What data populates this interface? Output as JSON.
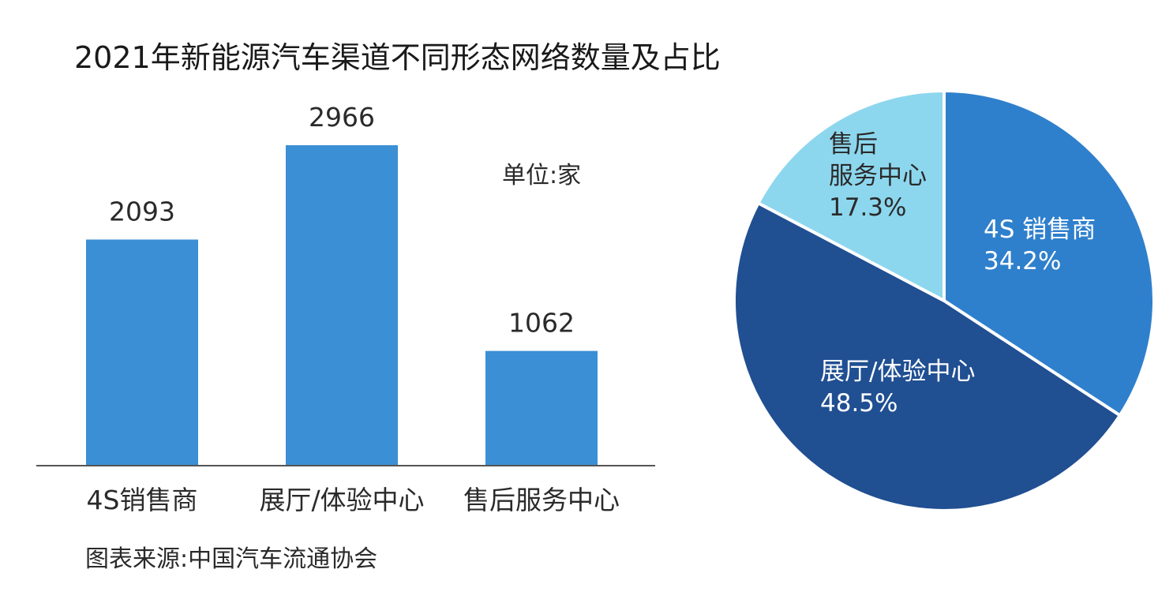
{
  "title": "2021年新能源汽车渠道不同形态网络数量及占比",
  "unit_label": "单位:家",
  "source": "图表来源:中国汽车流通协会",
  "colors": {
    "bar": "#3b8fd4",
    "axis": "#555555",
    "pie": [
      "#2f80cc",
      "#204f92",
      "#8dd7ee"
    ],
    "pie_text": [
      "#ffffff",
      "#ffffff",
      "#2a2a2a"
    ]
  },
  "chart_data": [
    {
      "type": "bar",
      "title": "2021年新能源汽车渠道不同形态网络数量及占比",
      "categories": [
        "4S销售商",
        "展厅/体验中心",
        "售后服务中心"
      ],
      "values": [
        2093,
        2966,
        1062
      ],
      "value_labels": [
        "2093",
        "2966",
        "1062"
      ],
      "ylabel": "单位:家",
      "ylim": [
        0,
        3400
      ],
      "grid": false
    },
    {
      "type": "pie",
      "slices": [
        {
          "name": "4S 销售商",
          "lines": [
            "4S 销售商"
          ],
          "value": 34.2,
          "label": "34.2%"
        },
        {
          "name": "展厅/体验中心",
          "lines": [
            "展厅/体验中心"
          ],
          "value": 48.5,
          "label": "48.5%"
        },
        {
          "name": "售后服务中心",
          "lines": [
            "售后",
            "服务中心"
          ],
          "value": 17.3,
          "label": "17.3%"
        }
      ]
    }
  ]
}
